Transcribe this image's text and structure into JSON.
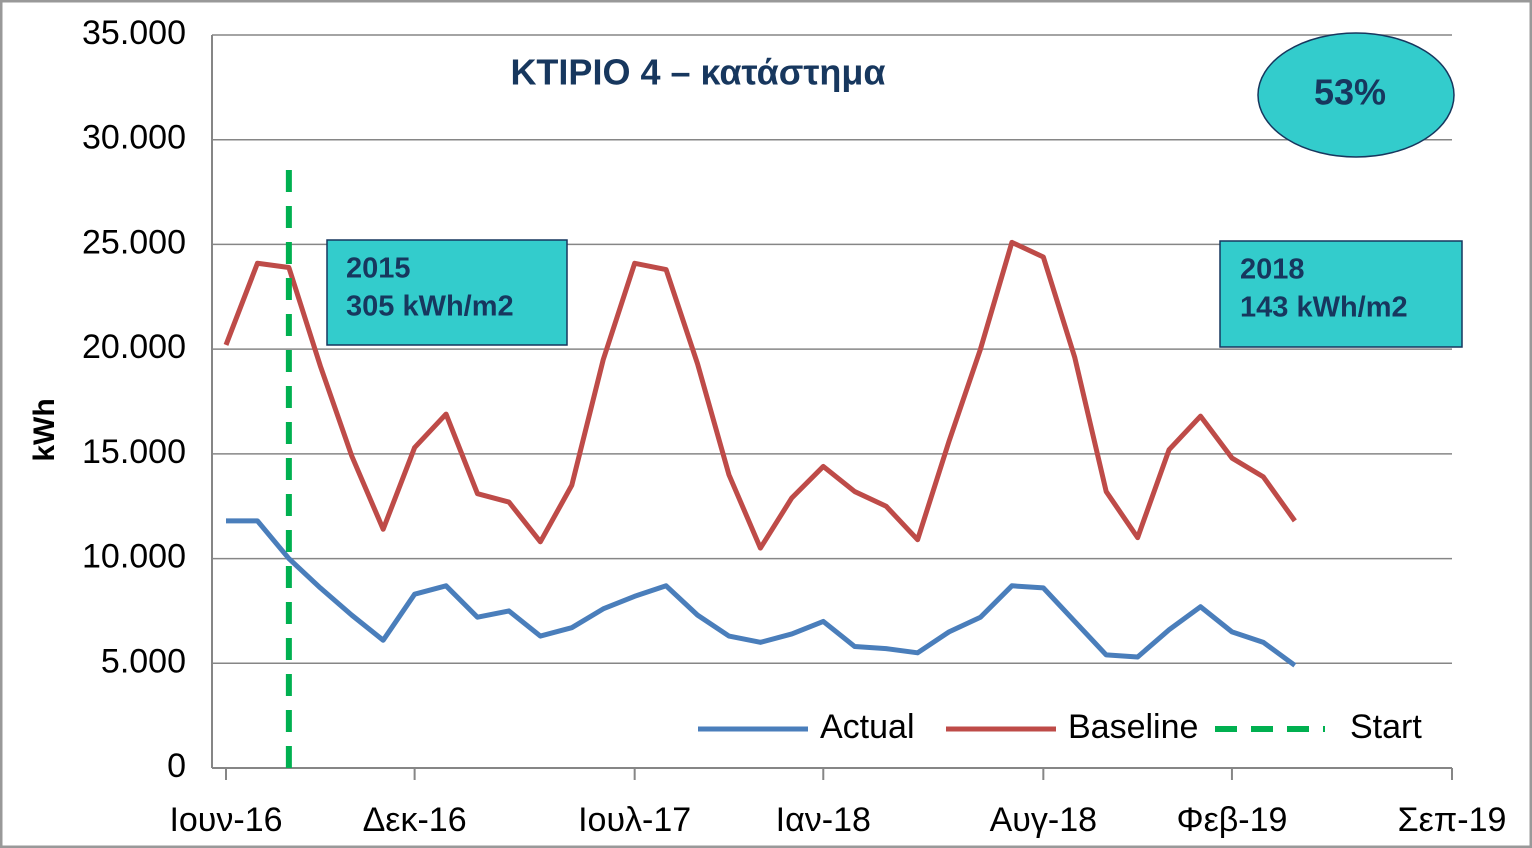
{
  "chart_data": {
    "type": "line",
    "title": "ΚΤΙΡΙΟ 4 – κατάστημα",
    "y_label": "kWh",
    "x": [
      "2016-06",
      "2016-07",
      "2016-08",
      "2016-09",
      "2016-10",
      "2016-11",
      "2016-12",
      "2017-01",
      "2017-02",
      "2017-03",
      "2017-04",
      "2017-05",
      "2017-06",
      "2017-07",
      "2017-08",
      "2017-09",
      "2017-10",
      "2017-11",
      "2017-12",
      "2018-01",
      "2018-02",
      "2018-03",
      "2018-04",
      "2018-05",
      "2018-06",
      "2018-07",
      "2018-08",
      "2018-09",
      "2018-10",
      "2018-11",
      "2018-12",
      "2019-01",
      "2019-02",
      "2019-03",
      "2019-04"
    ],
    "series": [
      {
        "name": "Actual",
        "color": "#4a7ebb",
        "values": [
          11800,
          11800,
          10000,
          8600,
          7300,
          6100,
          8300,
          8700,
          7200,
          7500,
          6300,
          6700,
          7600,
          8200,
          8700,
          7300,
          6300,
          6000,
          6400,
          7000,
          5800,
          5700,
          5500,
          6500,
          7200,
          8700,
          8600,
          7000,
          5400,
          5300,
          6600,
          7700,
          6500,
          6000,
          4900
        ]
      },
      {
        "name": "Baseline",
        "color": "#be4b48",
        "values": [
          20200,
          24100,
          23900,
          19200,
          14900,
          11400,
          15300,
          16900,
          13100,
          12700,
          10800,
          13500,
          19500,
          24100,
          23800,
          19300,
          14000,
          10500,
          12900,
          14400,
          13200,
          12500,
          10900,
          15600,
          20000,
          25100,
          24400,
          19600,
          13200,
          11000,
          15200,
          16800,
          14800,
          13900,
          11800
        ]
      }
    ],
    "marker": {
      "name": "Start",
      "x": "2016-08",
      "color": "#00b050"
    },
    "annotations": [
      {
        "lines": [
          "2015",
          "305 kWh/m2"
        ]
      },
      {
        "lines": [
          "2018",
          "143 kWh/m2"
        ]
      },
      {
        "text": "53%"
      }
    ],
    "ylim": [
      0,
      35000
    ],
    "yticks": [
      0,
      {
        "value": 5000,
        "label": "5.000"
      },
      {
        "value": 10000,
        "label": "10.000"
      },
      {
        "value": 15000,
        "label": "15.000"
      },
      {
        "value": 20000,
        "label": "20.000"
      },
      {
        "value": 25000,
        "label": "25.000"
      },
      {
        "value": 30000,
        "label": "30.000"
      },
      {
        "value": 35000,
        "label": "35.000"
      }
    ],
    "xlim": [
      "2016-06",
      "2019-09"
    ],
    "xticks": [
      {
        "value": "2016-06",
        "label": "Ιουν-16"
      },
      {
        "value": "2016-12",
        "label": "Δεκ-16"
      },
      {
        "value": "2017-07",
        "label": "Ιουλ-17"
      },
      {
        "value": "2018-01",
        "label": "Ιαν-18"
      },
      {
        "value": "2018-08",
        "label": "Αυγ-18"
      },
      {
        "value": "2019-02",
        "label": "Φεβ-19"
      },
      {
        "value": "2019-09",
        "label": "Σεπ-19"
      }
    ],
    "grid": true,
    "legend": "bottom-right"
  }
}
